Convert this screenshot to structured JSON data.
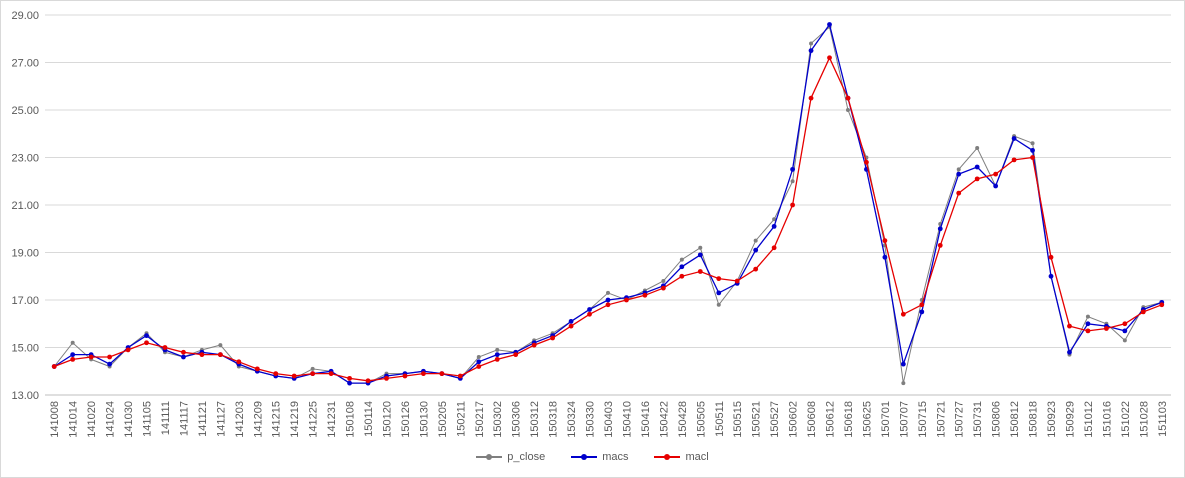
{
  "chart_data": {
    "type": "line",
    "title": "",
    "xlabel": "",
    "ylabel": "",
    "ylim": [
      13,
      29
    ],
    "yticks": [
      "13.00",
      "15.00",
      "17.00",
      "19.00",
      "21.00",
      "23.00",
      "25.00",
      "27.00",
      "29.00"
    ],
    "ytick_values": [
      13,
      15,
      17,
      19,
      21,
      23,
      25,
      27,
      29
    ],
    "grid": true,
    "legend_position": "bottom",
    "x_labels": [
      "141008",
      "141014",
      "141020",
      "141024",
      "141030",
      "141105",
      "141111",
      "141117",
      "141121",
      "141127",
      "141203",
      "141209",
      "141215",
      "141219",
      "141225",
      "141231",
      "150108",
      "150114",
      "150120",
      "150126",
      "150130",
      "150205",
      "150211",
      "150217",
      "150302",
      "150306",
      "150312",
      "150318",
      "150324",
      "150330",
      "150403",
      "150410",
      "150416",
      "150422",
      "150428",
      "150505",
      "150511",
      "150515",
      "150521",
      "150527",
      "150602",
      "150608",
      "150612",
      "150618",
      "150625",
      "150701",
      "150707",
      "150715",
      "150721",
      "150727",
      "150731",
      "150806",
      "150812",
      "150818",
      "150923",
      "150929",
      "151012",
      "151016",
      "151022",
      "151028",
      "151103"
    ],
    "series": [
      {
        "name": "p_close",
        "color": "#7f7f7f",
        "marker_size": 2,
        "values": [
          14.2,
          15.2,
          14.5,
          14.2,
          15.0,
          15.6,
          14.8,
          14.6,
          14.9,
          15.1,
          14.2,
          14.0,
          13.8,
          13.7,
          14.1,
          14.0,
          13.5,
          13.5,
          13.9,
          13.9,
          14.0,
          13.9,
          13.7,
          14.6,
          14.9,
          14.8,
          15.3,
          15.6,
          16.1,
          16.6,
          17.3,
          17.0,
          17.4,
          17.8,
          18.7,
          19.2,
          16.8,
          17.8,
          19.5,
          20.4,
          22.0,
          27.8,
          28.5,
          25.0,
          23.0,
          19.3,
          13.5,
          17.0,
          20.2,
          22.5,
          23.4,
          21.8,
          23.9,
          23.6,
          18.0,
          14.7,
          16.3,
          16.0,
          15.3,
          16.7,
          16.9
        ]
      },
      {
        "name": "macs",
        "color": "#0000cc",
        "marker_size": 2.4,
        "values": [
          14.2,
          14.7,
          14.7,
          14.3,
          15.0,
          15.5,
          14.9,
          14.6,
          14.8,
          14.7,
          14.3,
          14.0,
          13.8,
          13.7,
          13.9,
          14.0,
          13.5,
          13.5,
          13.8,
          13.9,
          14.0,
          13.9,
          13.7,
          14.4,
          14.7,
          14.8,
          15.2,
          15.5,
          16.1,
          16.6,
          17.0,
          17.1,
          17.3,
          17.6,
          18.4,
          18.9,
          17.3,
          17.7,
          19.1,
          20.1,
          22.5,
          27.5,
          28.6,
          25.5,
          22.5,
          18.8,
          14.3,
          16.5,
          20.0,
          22.3,
          22.6,
          21.8,
          23.8,
          23.3,
          18.0,
          14.8,
          16.0,
          15.9,
          15.7,
          16.6,
          16.9
        ]
      },
      {
        "name": "macl",
        "color": "#e60000",
        "marker_size": 2.4,
        "values": [
          14.2,
          14.5,
          14.6,
          14.6,
          14.9,
          15.2,
          15.0,
          14.8,
          14.7,
          14.7,
          14.4,
          14.1,
          13.9,
          13.8,
          13.9,
          13.9,
          13.7,
          13.6,
          13.7,
          13.8,
          13.9,
          13.9,
          13.8,
          14.2,
          14.5,
          14.7,
          15.1,
          15.4,
          15.9,
          16.4,
          16.8,
          17.0,
          17.2,
          17.5,
          18.0,
          18.2,
          17.9,
          17.8,
          18.3,
          19.2,
          21.0,
          25.5,
          27.2,
          25.5,
          22.8,
          19.5,
          16.4,
          16.8,
          19.3,
          21.5,
          22.1,
          22.3,
          22.9,
          23.0,
          18.8,
          15.9,
          15.7,
          15.8,
          16.0,
          16.5,
          16.8
        ]
      }
    ]
  }
}
